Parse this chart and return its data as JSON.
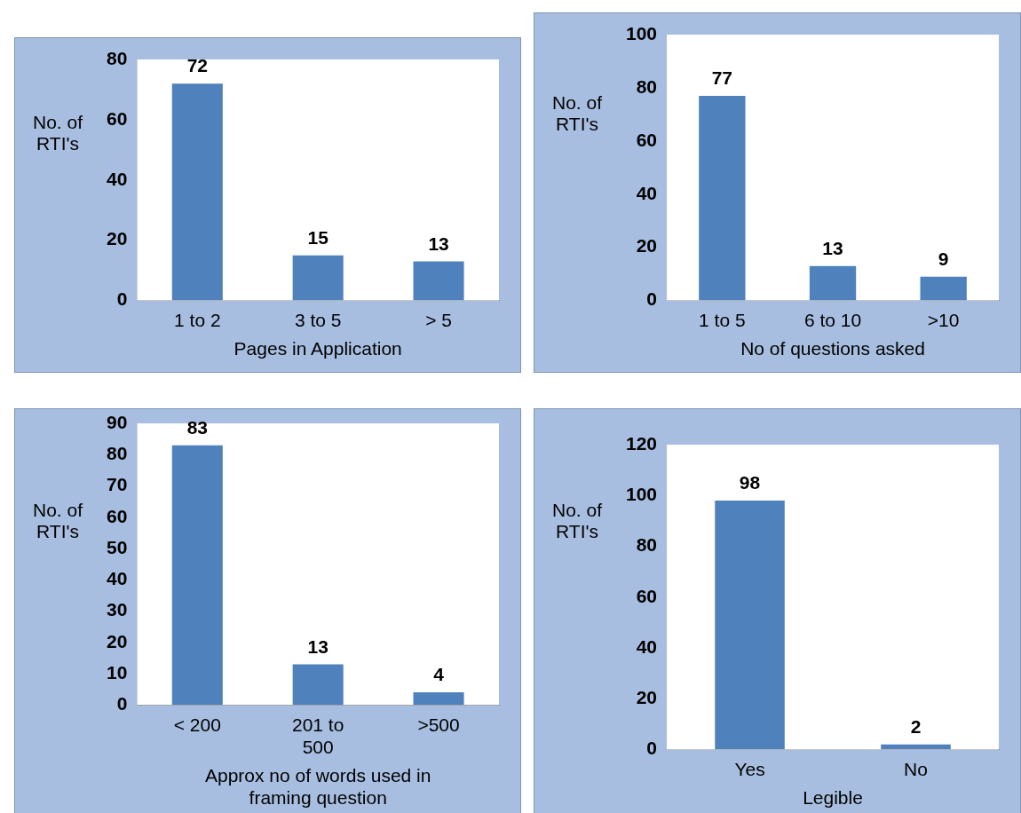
{
  "chart_data": [
    {
      "type": "bar",
      "categories": [
        "1 to 2",
        "3 to 5",
        "> 5"
      ],
      "values": [
        72,
        15,
        13
      ],
      "color": "#4f81bd",
      "ylim": [
        0,
        80
      ],
      "yticks": [
        0,
        20,
        40,
        60,
        80
      ],
      "xlabel": "Pages in Application",
      "ylabel": "No. of RTI's",
      "data_labels": true,
      "grid": false,
      "legend": false
    },
    {
      "type": "bar",
      "categories": [
        "1 to 5",
        "6 to 10",
        ">10"
      ],
      "values": [
        77,
        13,
        9
      ],
      "color": "#4f81bd",
      "ylim": [
        0,
        100
      ],
      "yticks": [
        0,
        20,
        40,
        60,
        80,
        100
      ],
      "xlabel": "No of questions asked",
      "ylabel": "No. of RTI's",
      "data_labels": true,
      "grid": false,
      "legend": false
    },
    {
      "type": "bar",
      "categories": [
        "< 200",
        "201 to 500",
        ">500"
      ],
      "values": [
        83,
        13,
        4
      ],
      "color": "#4f81bd",
      "ylim": [
        0,
        90
      ],
      "yticks": [
        0,
        10,
        20,
        30,
        40,
        50,
        60,
        70,
        80,
        90
      ],
      "xlabel": "Approx no of words used in framing question",
      "ylabel": "No. of RTI's",
      "data_labels": true,
      "grid": false,
      "legend": false
    },
    {
      "type": "bar",
      "categories": [
        "Yes",
        "No"
      ],
      "values": [
        98,
        2
      ],
      "color": "#4f81bd",
      "ylim": [
        0,
        120
      ],
      "yticks": [
        0,
        20,
        40,
        60,
        80,
        100,
        120
      ],
      "xlabel": "Legible",
      "ylabel": "No. of RTI's",
      "data_labels": true,
      "grid": false,
      "legend": false
    }
  ]
}
